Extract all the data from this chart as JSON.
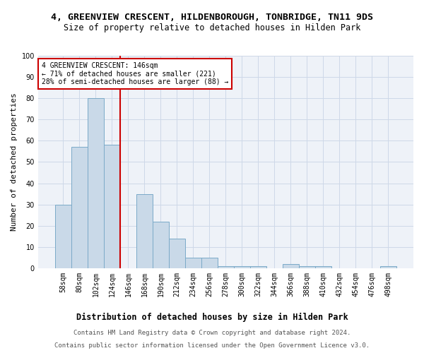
{
  "title1": "4, GREENVIEW CRESCENT, HILDENBOROUGH, TONBRIDGE, TN11 9DS",
  "title2": "Size of property relative to detached houses in Hilden Park",
  "xlabel": "Distribution of detached houses by size in Hilden Park",
  "ylabel": "Number of detached properties",
  "categories": [
    "58sqm",
    "80sqm",
    "102sqm",
    "124sqm",
    "146sqm",
    "168sqm",
    "190sqm",
    "212sqm",
    "234sqm",
    "256sqm",
    "278sqm",
    "300sqm",
    "322sqm",
    "344sqm",
    "366sqm",
    "388sqm",
    "410sqm",
    "432sqm",
    "454sqm",
    "476sqm",
    "498sqm"
  ],
  "values": [
    30,
    57,
    80,
    58,
    0,
    35,
    22,
    14,
    5,
    5,
    1,
    1,
    1,
    0,
    2,
    1,
    1,
    0,
    0,
    0,
    1
  ],
  "bar_color": "#c9d9e8",
  "bar_edge_color": "#7baac8",
  "property_line_index": 4,
  "property_line_color": "#cc0000",
  "annotation_text": "4 GREENVIEW CRESCENT: 146sqm\n← 71% of detached houses are smaller (221)\n28% of semi-detached houses are larger (88) →",
  "annotation_box_color": "#cc0000",
  "ylim": [
    0,
    100
  ],
  "yticks": [
    0,
    10,
    20,
    30,
    40,
    50,
    60,
    70,
    80,
    90,
    100
  ],
  "footer1": "Contains HM Land Registry data © Crown copyright and database right 2024.",
  "footer2": "Contains public sector information licensed under the Open Government Licence v3.0.",
  "title1_fontsize": 9.5,
  "title2_fontsize": 8.5,
  "xlabel_fontsize": 8.5,
  "ylabel_fontsize": 8,
  "tick_fontsize": 7,
  "annotation_fontsize": 7,
  "footer_fontsize": 6.5,
  "grid_color": "#cdd8e8",
  "background_color": "#eef2f8"
}
